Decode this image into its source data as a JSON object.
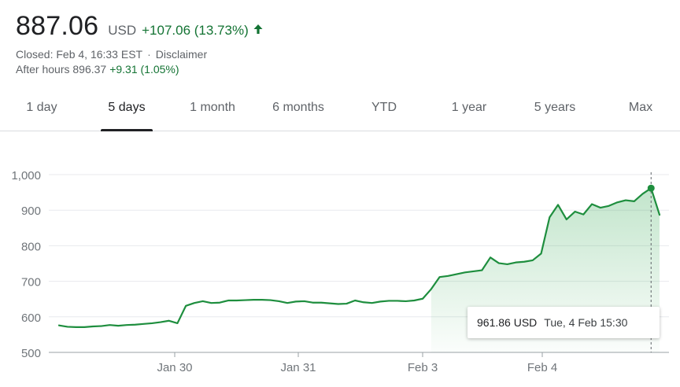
{
  "quote": {
    "price": "887.06",
    "currency": "USD",
    "change": "+107.06 (13.73%)",
    "closed_label": "Closed: Feb 4, 16:33 EST",
    "separator": "·",
    "disclaimer": "Disclaimer",
    "after_hours_label": "After hours 896.37",
    "after_hours_change": "+9.31 (1.05%)",
    "up_color": "#137333"
  },
  "tabs": [
    {
      "label": "1 day"
    },
    {
      "label": "5 days",
      "active": true
    },
    {
      "label": "1 month"
    },
    {
      "label": "6 months"
    },
    {
      "label": "YTD"
    },
    {
      "label": "1 year"
    },
    {
      "label": "5 years"
    },
    {
      "label": "Max"
    }
  ],
  "tooltip": {
    "value": "961.86 USD",
    "date": "Tue, 4 Feb 15:30"
  },
  "chart_data": {
    "type": "area",
    "title": "",
    "xlabel": "",
    "ylabel": "",
    "ylim": [
      500,
      1000
    ],
    "y_ticks": [
      1000,
      900,
      800,
      700,
      600,
      500
    ],
    "y_tick_labels": [
      "1,000",
      "900",
      "800",
      "700",
      "600",
      "500"
    ],
    "x_ticks": [
      "Jan 30",
      "Jan 31",
      "Feb 3",
      "Feb 4"
    ],
    "grid": true,
    "line_color": "#1e8e3e",
    "fill_color": "#34a853",
    "highlight": {
      "value": 961.86,
      "label": "Tue, 4 Feb 15:30"
    },
    "series": [
      {
        "values": [
          576,
          572,
          571,
          571,
          573,
          574,
          577,
          575,
          577,
          578,
          580,
          582,
          585,
          589,
          582,
          631,
          639,
          644,
          639,
          640,
          646,
          646,
          647,
          648,
          648,
          647,
          644,
          639,
          643,
          644,
          640,
          640,
          638,
          636,
          637,
          646,
          641,
          639,
          643,
          645,
          645,
          644,
          646,
          651,
          678,
          712,
          715,
          720,
          725,
          728,
          731,
          767,
          751,
          748,
          753,
          755,
          759,
          778,
          880,
          915,
          874,
          896,
          888,
          917,
          907,
          912,
          922,
          928,
          925,
          946,
          962,
          887
        ]
      }
    ]
  }
}
